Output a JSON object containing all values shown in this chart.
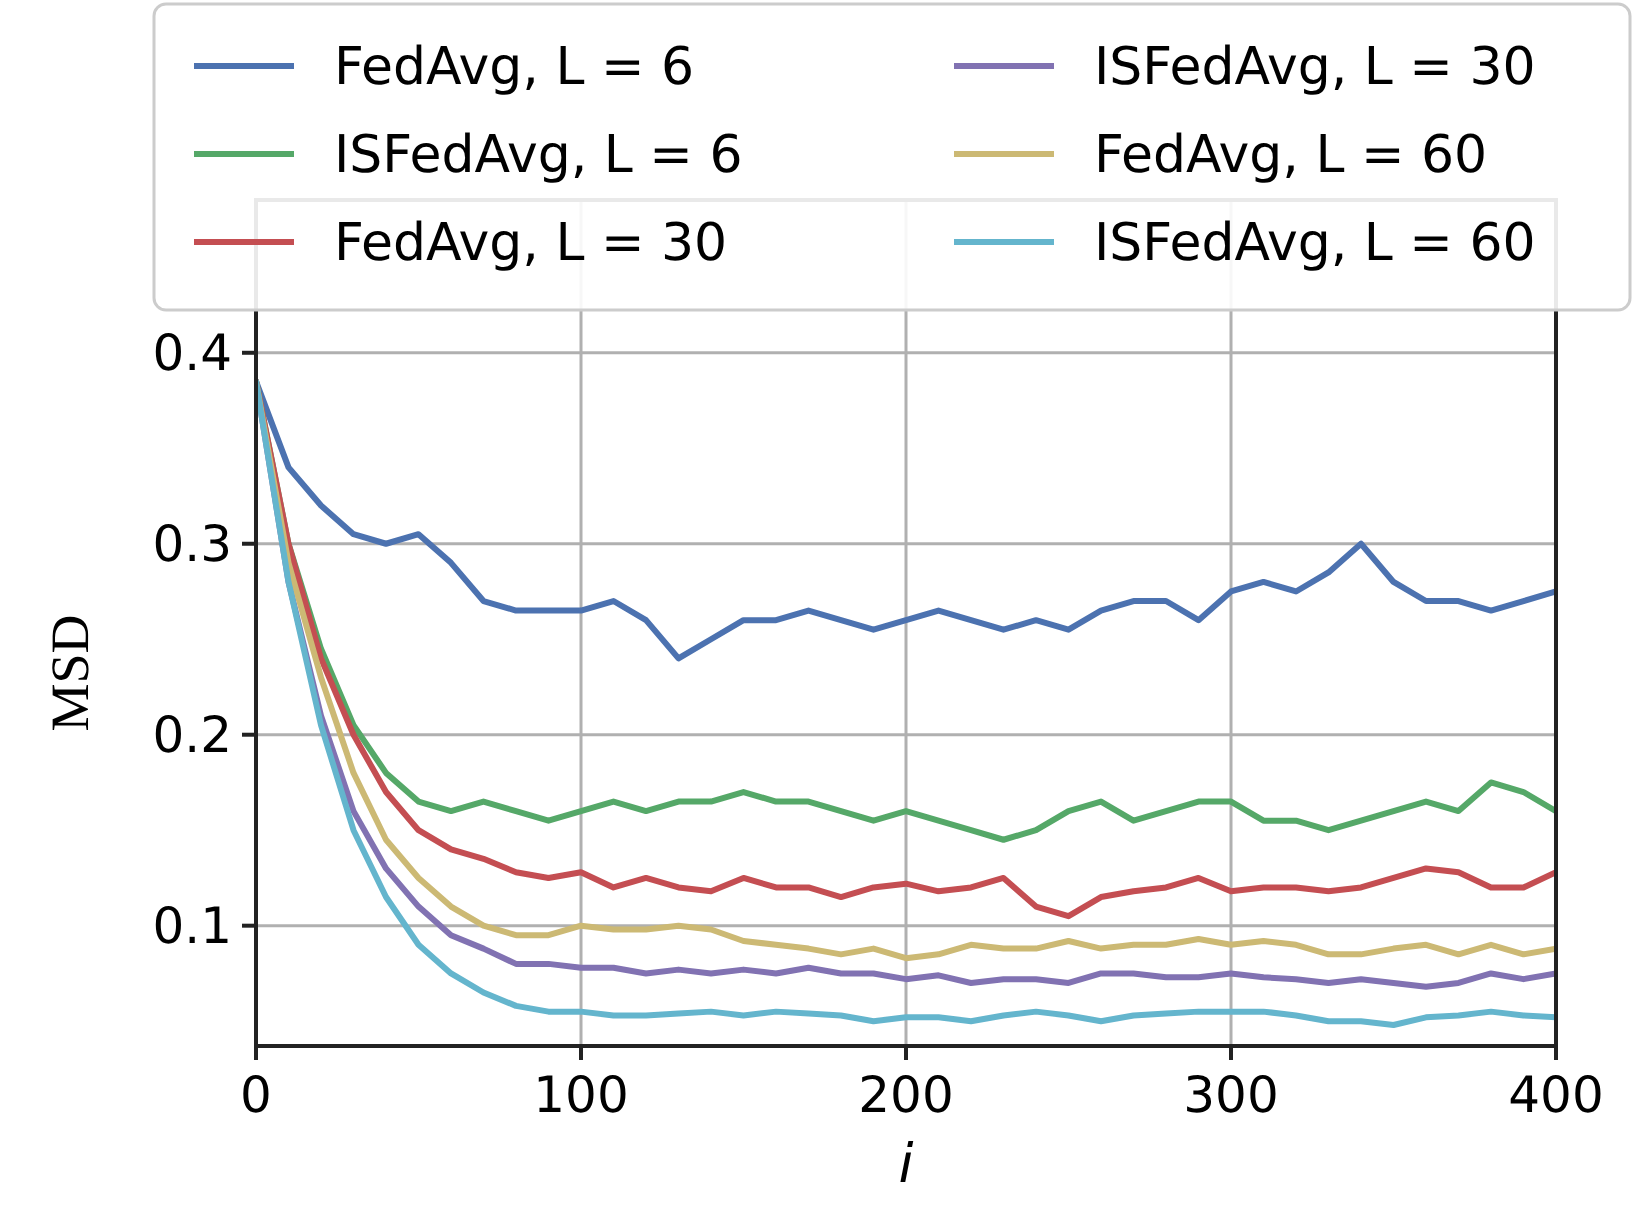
{
  "chart_data": {
    "type": "line",
    "xlabel": "i",
    "ylabel": "MSD",
    "x": [
      0,
      10,
      20,
      30,
      40,
      50,
      60,
      70,
      80,
      90,
      100,
      110,
      120,
      130,
      140,
      150,
      160,
      170,
      180,
      190,
      200,
      210,
      220,
      230,
      240,
      250,
      260,
      270,
      280,
      290,
      300,
      310,
      320,
      330,
      340,
      350,
      360,
      370,
      380,
      390,
      400
    ],
    "xlim": [
      0,
      400
    ],
    "xticks": [
      0,
      100,
      200,
      300,
      400
    ],
    "ylim": [
      0.037,
      0.48
    ],
    "yticks": [
      0.1,
      0.2,
      0.3,
      0.4
    ],
    "grid": true,
    "legend": "top",
    "line_style": "solid",
    "series": [
      {
        "name": "FedAvg, L = 6",
        "color": "#4c72b0",
        "values": [
          0.385,
          0.34,
          0.32,
          0.305,
          0.3,
          0.305,
          0.29,
          0.27,
          0.265,
          0.265,
          0.265,
          0.27,
          0.26,
          0.24,
          0.25,
          0.26,
          0.26,
          0.265,
          0.26,
          0.255,
          0.26,
          0.265,
          0.26,
          0.255,
          0.26,
          0.255,
          0.265,
          0.27,
          0.27,
          0.26,
          0.275,
          0.28,
          0.275,
          0.285,
          0.3,
          0.28,
          0.27,
          0.27,
          0.265,
          0.27,
          0.275
        ]
      },
      {
        "name": "ISFedAvg, L = 6",
        "color": "#55a868",
        "values": [
          0.385,
          0.3,
          0.245,
          0.205,
          0.18,
          0.165,
          0.16,
          0.165,
          0.16,
          0.155,
          0.16,
          0.165,
          0.16,
          0.165,
          0.165,
          0.17,
          0.165,
          0.165,
          0.16,
          0.155,
          0.16,
          0.155,
          0.15,
          0.145,
          0.15,
          0.16,
          0.165,
          0.155,
          0.16,
          0.165,
          0.165,
          0.155,
          0.155,
          0.15,
          0.155,
          0.16,
          0.165,
          0.16,
          0.175,
          0.17,
          0.16
        ]
      },
      {
        "name": "FedAvg, L = 30",
        "color": "#c44e52",
        "values": [
          0.385,
          0.3,
          0.24,
          0.2,
          0.17,
          0.15,
          0.14,
          0.135,
          0.128,
          0.125,
          0.128,
          0.12,
          0.125,
          0.12,
          0.118,
          0.125,
          0.12,
          0.12,
          0.115,
          0.12,
          0.122,
          0.118,
          0.12,
          0.125,
          0.11,
          0.105,
          0.115,
          0.118,
          0.12,
          0.125,
          0.118,
          0.12,
          0.12,
          0.118,
          0.12,
          0.125,
          0.13,
          0.128,
          0.12,
          0.12,
          0.128
        ]
      },
      {
        "name": "ISFedAvg, L = 30",
        "color": "#8172b2",
        "values": [
          0.385,
          0.28,
          0.21,
          0.16,
          0.13,
          0.11,
          0.095,
          0.088,
          0.08,
          0.08,
          0.078,
          0.078,
          0.075,
          0.077,
          0.075,
          0.077,
          0.075,
          0.078,
          0.075,
          0.075,
          0.072,
          0.074,
          0.07,
          0.072,
          0.072,
          0.07,
          0.075,
          0.075,
          0.073,
          0.073,
          0.075,
          0.073,
          0.072,
          0.07,
          0.072,
          0.07,
          0.068,
          0.07,
          0.075,
          0.072,
          0.075
        ]
      },
      {
        "name": "FedAvg, L = 60",
        "color": "#ccb974",
        "values": [
          0.385,
          0.29,
          0.23,
          0.18,
          0.145,
          0.125,
          0.11,
          0.1,
          0.095,
          0.095,
          0.1,
          0.098,
          0.098,
          0.1,
          0.098,
          0.092,
          0.09,
          0.088,
          0.085,
          0.088,
          0.083,
          0.085,
          0.09,
          0.088,
          0.088,
          0.092,
          0.088,
          0.09,
          0.09,
          0.093,
          0.09,
          0.092,
          0.09,
          0.085,
          0.085,
          0.088,
          0.09,
          0.085,
          0.09,
          0.085,
          0.088
        ]
      },
      {
        "name": "ISFedAvg, L = 60",
        "color": "#64b5cd",
        "values": [
          0.385,
          0.28,
          0.205,
          0.15,
          0.115,
          0.09,
          0.075,
          0.065,
          0.058,
          0.055,
          0.055,
          0.053,
          0.053,
          0.054,
          0.055,
          0.053,
          0.055,
          0.054,
          0.053,
          0.05,
          0.052,
          0.052,
          0.05,
          0.053,
          0.055,
          0.053,
          0.05,
          0.053,
          0.054,
          0.055,
          0.055,
          0.055,
          0.053,
          0.05,
          0.05,
          0.048,
          0.052,
          0.053,
          0.055,
          0.053,
          0.052
        ]
      }
    ]
  }
}
